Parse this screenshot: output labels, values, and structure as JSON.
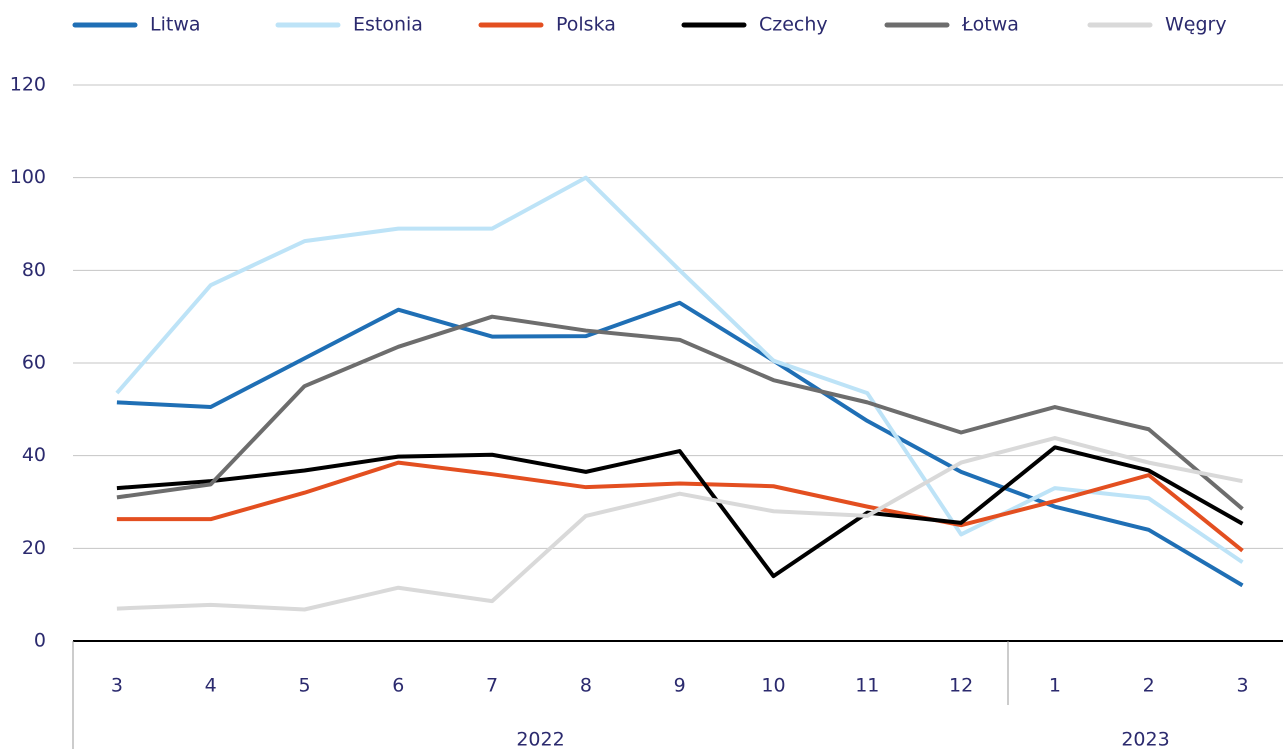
{
  "chart_data": {
    "type": "line",
    "groups": [
      {
        "label": "2022",
        "months": [
          "3",
          "4",
          "5",
          "6",
          "7",
          "8",
          "9",
          "10",
          "11",
          "12"
        ]
      },
      {
        "label": "2023",
        "months": [
          "1",
          "2",
          "3"
        ]
      }
    ],
    "series": [
      {
        "name": "Litwa",
        "color": "#1f6fb5",
        "values": [
          51.5,
          50.5,
          61,
          71.5,
          65.7,
          65.8,
          73,
          60.5,
          47.5,
          36.5,
          29,
          24,
          12
        ]
      },
      {
        "name": "Estonia",
        "color": "#bde3f7",
        "values": [
          53.5,
          76.8,
          86.3,
          89,
          89,
          100,
          80,
          60.5,
          53.5,
          23,
          33,
          30.8,
          17
        ]
      },
      {
        "name": "Polska",
        "color": "#e34f20",
        "values": [
          26.3,
          26.3,
          32,
          38.5,
          36,
          33.2,
          34,
          33.4,
          29,
          25,
          30.2,
          35.8,
          19.5
        ]
      },
      {
        "name": "Czechy",
        "color": "#000000",
        "values": [
          33,
          34.5,
          36.8,
          39.8,
          40.2,
          36.5,
          41,
          14,
          27.7,
          25.5,
          41.8,
          36.8,
          25.3
        ]
      },
      {
        "name": "Łotwa",
        "color": "#6d6d6d",
        "values": [
          31,
          33.8,
          55,
          63.5,
          70,
          67,
          65,
          56.3,
          51.5,
          45,
          50.5,
          45.7,
          28.5
        ]
      },
      {
        "name": "Węgry",
        "color": "#d9d9d9",
        "values": [
          7,
          7.8,
          6.8,
          11.5,
          8.6,
          27,
          31.8,
          28,
          27,
          38.5,
          43.8,
          38.5,
          34.5
        ]
      }
    ],
    "ylim": [
      0,
      120
    ],
    "yticks": [
      0,
      20,
      40,
      60,
      80,
      100,
      120
    ],
    "grid": true
  }
}
